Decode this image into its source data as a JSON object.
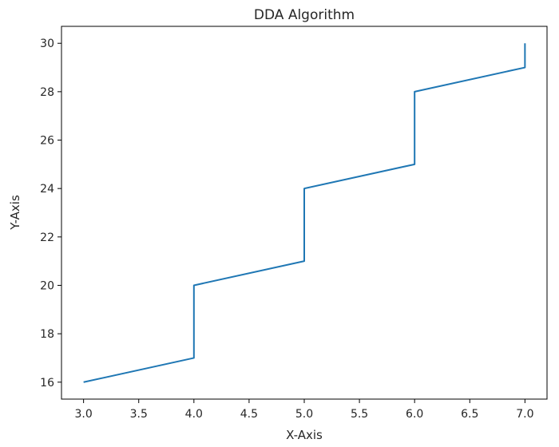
{
  "chart_data": {
    "type": "line",
    "title": "DDA Algorithm",
    "xlabel": "X-Axis",
    "ylabel": "Y-Axis",
    "xlim": [
      2.8,
      7.2
    ],
    "ylim": [
      15.3,
      30.7
    ],
    "x_ticks": [
      3.0,
      3.5,
      4.0,
      4.5,
      5.0,
      5.5,
      6.0,
      6.5,
      7.0
    ],
    "y_ticks": [
      16,
      18,
      20,
      22,
      24,
      26,
      28,
      30
    ],
    "grid": false,
    "legend": "none",
    "series": [
      {
        "color": "#1f77b4",
        "x": [
          3,
          4,
          4,
          5,
          5,
          6,
          6,
          7,
          7
        ],
        "y": [
          16,
          17,
          20,
          21,
          24,
          25,
          28,
          29,
          30
        ]
      }
    ]
  }
}
